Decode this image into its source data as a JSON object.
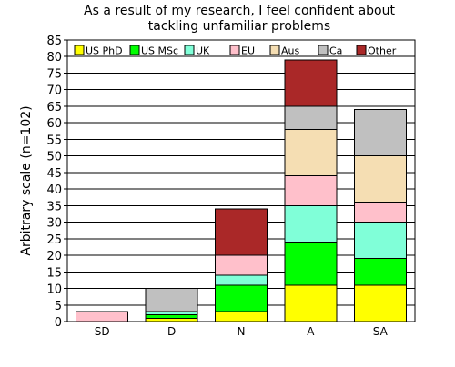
{
  "chart_data": {
    "type": "bar",
    "stacked": true,
    "title": "As a result of my research, I feel confident about tackling unfamiliar problems",
    "title_lines": [
      "As a result of my research, I feel confident about",
      "tackling unfamiliar problems"
    ],
    "xlabel": "",
    "ylabel": "Arbitrary scale (n=102)",
    "ylim": [
      0,
      85
    ],
    "yticks": [
      0,
      5,
      10,
      15,
      20,
      25,
      30,
      35,
      40,
      45,
      50,
      55,
      60,
      65,
      70,
      75,
      80,
      85
    ],
    "grid": true,
    "legend_position": "top",
    "categories": [
      "SD",
      "D",
      "N",
      "A",
      "SA"
    ],
    "series": [
      {
        "name": "US PhD",
        "color": "#ffff00",
        "values": [
          0,
          1,
          3,
          11,
          11
        ]
      },
      {
        "name": "US MSc",
        "color": "#00ff00",
        "values": [
          0,
          1,
          8,
          13,
          8
        ]
      },
      {
        "name": "UK",
        "color": "#80ffd8",
        "values": [
          0,
          1,
          3,
          11,
          11
        ]
      },
      {
        "name": "EU",
        "color": "#ffc0cb",
        "values": [
          3,
          0,
          6,
          9,
          6
        ]
      },
      {
        "name": "Aus",
        "color": "#f5deb3",
        "values": [
          0,
          0,
          0,
          14,
          14
        ]
      },
      {
        "name": "Ca",
        "color": "#c0c0c0",
        "values": [
          0,
          7,
          0,
          7,
          14
        ]
      },
      {
        "name": "Other",
        "color": "#aa2828",
        "values": [
          0,
          0,
          14,
          14,
          0
        ]
      }
    ]
  }
}
